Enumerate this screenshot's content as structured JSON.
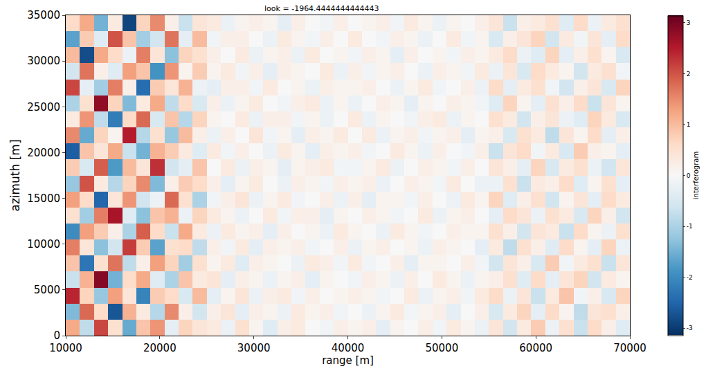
{
  "chart_data": {
    "type": "heatmap",
    "title": "look = -1964.4444444444443",
    "x_label": "range [m]",
    "y_label": "azimuth [m]",
    "xlim": [
      10000,
      70000
    ],
    "ylim": [
      0,
      35000
    ],
    "xticks": [
      10000,
      20000,
      30000,
      40000,
      50000,
      60000,
      70000
    ],
    "yticks": [
      0,
      5000,
      10000,
      15000,
      20000,
      25000,
      30000,
      35000
    ],
    "grid": false,
    "colorbar": {
      "title": "interferogram",
      "range": [
        -3.14159,
        3.14159
      ],
      "ticks": [
        -3,
        -2,
        -1,
        0,
        1,
        2,
        3
      ]
    },
    "x": [
      10750,
      12250,
      13750,
      15250,
      16750,
      18250,
      19750,
      21250,
      22750,
      24250,
      25750,
      27250,
      28750,
      30250,
      31750,
      33250,
      34750,
      36250,
      37750,
      39250,
      40750,
      42250,
      43750,
      45250,
      46750,
      48250,
      49750,
      51250,
      52750,
      54250,
      55750,
      57250,
      58750,
      60250,
      61750,
      63250,
      64750,
      66250,
      67750,
      69250
    ],
    "y": [
      875,
      2625,
      4375,
      6125,
      7875,
      9625,
      11375,
      13125,
      14875,
      16625,
      18375,
      20125,
      21875,
      23625,
      25375,
      27125,
      28875,
      30625,
      32375,
      34125
    ],
    "z": [
      [
        1.2,
        -0.8,
        2.1,
        0.5,
        -1.6,
        0.9,
        1.4,
        -0.3,
        0.7,
        0.4,
        0.3,
        -0.2,
        0.5,
        0.1,
        -0.4,
        0.2,
        0.3,
        0.0,
        -0.1,
        0.2,
        0.1,
        0.2,
        -0.3,
        0.1,
        0.0,
        0.2,
        -0.1,
        0.3,
        0.1,
        -0.2,
        0.4,
        -0.6,
        0.3,
        0.8,
        -0.2,
        0.5,
        -0.7,
        0.6,
        0.2,
        -0.4
      ],
      [
        -1.4,
        1.8,
        0.6,
        -2.7,
        1.1,
        0.3,
        -0.9,
        1.5,
        0.2,
        -0.6,
        0.2,
        0.4,
        -0.3,
        0.2,
        0.1,
        -0.2,
        0.3,
        0.1,
        0.2,
        -0.1,
        0.0,
        -0.2,
        0.1,
        0.3,
        -0.1,
        0.1,
        0.2,
        -0.3,
        0.0,
        0.2,
        -0.5,
        0.3,
        0.7,
        -0.3,
        0.6,
        0.1,
        -0.8,
        0.4,
        0.5,
        0.2
      ],
      [
        2.4,
        0.7,
        -1.2,
        1.3,
        0.4,
        -2.1,
        0.8,
        0.6,
        -0.5,
        1.0,
        -0.3,
        0.1,
        0.4,
        -0.2,
        0.2,
        0.3,
        -0.1,
        0.2,
        0.0,
        0.1,
        0.2,
        0.1,
        -0.1,
        0.0,
        0.3,
        -0.2,
        0.1,
        0.2,
        -0.1,
        0.3,
        0.6,
        -0.2,
        0.4,
        -0.7,
        0.3,
        0.9,
        -0.1,
        0.2,
        -0.5,
        0.7
      ],
      [
        -0.7,
        1.1,
        2.9,
        -1.5,
        0.6,
        1.2,
        -0.4,
        -1.0,
        0.9,
        0.3,
        0.4,
        -0.3,
        0.2,
        0.1,
        -0.2,
        0.1,
        0.2,
        -0.3,
        0.1,
        0.0,
        -0.1,
        0.2,
        0.1,
        -0.2,
        0.2,
        0.0,
        0.3,
        0.1,
        -0.2,
        0.1,
        0.2,
        0.5,
        -0.4,
        0.6,
        -0.3,
        0.4,
        0.7,
        -0.6,
        0.3,
        0.1
      ],
      [
        0.9,
        -2.3,
        0.5,
        1.7,
        -0.8,
        0.2,
        1.3,
        0.7,
        -1.1,
        0.5,
        0.1,
        0.3,
        -0.4,
        0.2,
        0.1,
        0.0,
        -0.2,
        0.3,
        0.2,
        -0.1,
        0.3,
        -0.1,
        0.0,
        0.2,
        -0.3,
        0.1,
        0.1,
        0.0,
        0.2,
        -0.1,
        -0.6,
        0.4,
        0.2,
        -0.5,
        0.8,
        -0.1,
        0.3,
        0.5,
        -0.7,
        0.4
      ],
      [
        1.6,
        0.4,
        -1.3,
        -0.6,
        2.2,
        0.8,
        -1.7,
        0.5,
        0.6,
        -0.8,
        0.2,
        -0.1,
        0.3,
        -0.3,
        0.2,
        0.1,
        0.2,
        -0.1,
        0.0,
        0.2,
        -0.2,
        0.1,
        0.2,
        0.0,
        0.1,
        -0.2,
        0.2,
        0.1,
        0.0,
        -0.3,
        0.3,
        -0.8,
        0.5,
        0.2,
        -0.4,
        0.6,
        0.1,
        -0.3,
        0.7,
        -0.2
      ],
      [
        -2.0,
        1.3,
        0.8,
        0.2,
        -1.0,
        1.9,
        0.6,
        -0.7,
        1.2,
        0.3,
        -0.2,
        0.3,
        0.1,
        0.2,
        -0.3,
        0.2,
        0.0,
        0.1,
        -0.2,
        0.3,
        0.1,
        0.0,
        -0.2,
        0.3,
        0.1,
        -0.1,
        0.0,
        0.2,
        0.1,
        0.1,
        0.5,
        0.2,
        -0.6,
        0.4,
        0.3,
        -0.7,
        0.6,
        0.1,
        -0.2,
        0.5
      ],
      [
        0.5,
        -1.1,
        1.6,
        2.6,
        -0.4,
        -1.3,
        0.9,
        1.1,
        -0.2,
        0.7,
        0.3,
        0.1,
        -0.2,
        0.0,
        0.3,
        -0.1,
        0.2,
        0.2,
        -0.3,
        0.1,
        0.0,
        0.2,
        0.1,
        -0.1,
        0.0,
        0.3,
        -0.2,
        0.1,
        0.2,
        0.0,
        -0.3,
        0.6,
        0.4,
        -0.2,
        0.5,
        0.3,
        -0.5,
        0.7,
        0.2,
        -0.6
      ],
      [
        1.3,
        0.6,
        -2.5,
        0.4,
        1.4,
        -0.6,
        -0.2,
        1.8,
        0.5,
        -1.0,
        -0.1,
        0.2,
        0.4,
        -0.2,
        0.1,
        0.3,
        -0.1,
        0.0,
        0.2,
        -0.2,
        0.2,
        -0.3,
        0.1,
        0.1,
        -0.1,
        0.2,
        0.0,
        -0.2,
        0.3,
        0.1,
        0.7,
        -0.4,
        0.2,
        0.5,
        -0.6,
        0.1,
        0.4,
        -0.3,
        0.6,
        0.3
      ],
      [
        -1.2,
        2.0,
        0.3,
        -0.9,
        0.7,
        1.5,
        -1.4,
        0.2,
        0.8,
        0.6,
        0.2,
        -0.3,
        0.1,
        0.3,
        0.0,
        -0.2,
        0.2,
        0.1,
        -0.1,
        0.2,
        0.1,
        0.2,
        -0.2,
        0.0,
        0.2,
        0.1,
        -0.1,
        0.3,
        0.0,
        -0.2,
        -0.2,
        0.5,
        -0.7,
        0.3,
        0.2,
        0.6,
        -0.4,
        0.1,
        0.5,
        -0.3
      ],
      [
        0.8,
        -0.5,
        1.9,
        -1.8,
        1.0,
        0.4,
        2.3,
        -0.6,
        -0.3,
        0.9,
        0.0,
        0.3,
        -0.2,
        0.2,
        0.1,
        -0.3,
        0.1,
        0.2,
        0.3,
        -0.1,
        -0.1,
        0.1,
        0.3,
        -0.2,
        0.0,
        0.2,
        0.1,
        -0.1,
        0.2,
        0.0,
        0.4,
        0.2,
        -0.3,
        0.7,
        -0.5,
        0.3,
        0.5,
        -0.2,
        -0.6,
        0.4
      ],
      [
        -2.6,
        0.9,
        0.4,
        1.2,
        -0.7,
        -1.5,
        1.1,
        0.8,
        0.3,
        -0.4,
        0.3,
        -0.1,
        0.2,
        0.0,
        -0.2,
        0.3,
        0.1,
        -0.3,
        0.2,
        0.1,
        0.2,
        -0.1,
        0.0,
        0.3,
        0.1,
        -0.2,
        0.2,
        0.0,
        -0.1,
        0.2,
        -0.7,
        0.4,
        0.6,
        -0.1,
        0.3,
        -0.5,
        0.8,
        0.2,
        0.1,
        -0.3
      ],
      [
        1.5,
        -1.6,
        0.7,
        0.1,
        2.5,
        -0.9,
        0.5,
        -1.2,
        1.0,
        0.2,
        -0.2,
        0.2,
        0.0,
        0.4,
        -0.1,
        0.1,
        -0.3,
        0.2,
        0.1,
        0.3,
        0.0,
        0.3,
        -0.2,
        0.1,
        0.2,
        -0.1,
        0.1,
        0.2,
        -0.3,
        0.1,
        0.2,
        -0.5,
        0.5,
        0.3,
        -0.8,
        0.4,
        0.1,
        0.6,
        -0.3,
        0.2
      ],
      [
        0.3,
        1.4,
        -0.8,
        -2.2,
        0.6,
        1.8,
        -0.5,
        0.9,
        -0.9,
        0.7,
        0.1,
        0.0,
        0.3,
        -0.2,
        0.2,
        0.2,
        -0.1,
        0.1,
        -0.2,
        0.0,
        0.3,
        -0.2,
        0.1,
        0.0,
        -0.1,
        0.2,
        0.3,
        -0.2,
        0.1,
        0.0,
        0.5,
        0.3,
        -0.6,
        0.2,
        0.4,
        -0.2,
        -0.4,
        0.7,
        0.3,
        -0.5
      ],
      [
        -1.0,
        0.5,
        2.8,
        0.7,
        -1.4,
        0.3,
        1.2,
        -0.8,
        0.6,
        -0.5,
        0.2,
        -0.2,
        0.1,
        0.3,
        0.0,
        -0.1,
        0.2,
        0.3,
        -0.2,
        0.1,
        -0.2,
        0.0,
        0.2,
        0.1,
        -0.3,
        0.1,
        0.0,
        0.2,
        0.1,
        -0.1,
        -0.4,
        0.7,
        0.1,
        -0.3,
        0.5,
        0.2,
        0.6,
        -0.7,
        0.4,
        0.1
      ],
      [
        2.1,
        -0.3,
        -1.1,
        1.6,
        0.2,
        -2.4,
        0.8,
        0.4,
        1.1,
        -0.2,
        -0.3,
        0.2,
        0.2,
        -0.1,
        0.3,
        0.0,
        0.1,
        -0.2,
        0.2,
        0.1,
        0.1,
        0.2,
        0.0,
        -0.2,
        0.1,
        0.3,
        -0.1,
        0.0,
        0.2,
        -0.2,
        0.6,
        -0.3,
        0.3,
        0.5,
        -0.1,
        -0.6,
        0.2,
        0.4,
        -0.5,
        0.7
      ],
      [
        -0.6,
        1.7,
        0.2,
        -0.4,
        1.3,
        0.9,
        -1.9,
        1.4,
        0.1,
        0.8,
        0.1,
        0.3,
        -0.1,
        0.2,
        -0.3,
        0.2,
        0.1,
        0.0,
        0.3,
        -0.2,
        0.2,
        -0.1,
        0.1,
        0.2,
        0.0,
        -0.2,
        0.2,
        0.1,
        -0.1,
        0.3,
        -0.2,
        0.4,
        -0.5,
        0.6,
        0.3,
        0.1,
        -0.6,
        0.3,
        0.5,
        -0.1
      ],
      [
        1.0,
        -2.8,
        1.2,
        0.6,
        -0.2,
        1.6,
        0.4,
        -1.3,
        0.7,
        0.5,
        0.2,
        0.0,
        0.3,
        -0.2,
        0.1,
        0.2,
        -0.2,
        0.3,
        0.0,
        0.1,
        -0.1,
        0.2,
        0.1,
        -0.3,
        0.2,
        0.0,
        0.1,
        -0.1,
        0.2,
        0.1,
        0.3,
        0.6,
        -0.2,
        -0.4,
        0.7,
        -0.3,
        0.2,
        0.5,
        0.1,
        -0.5
      ],
      [
        -1.7,
        0.8,
        -0.4,
        2.0,
        0.9,
        -1.1,
        -0.6,
        1.7,
        -0.3,
        1.0,
        -0.1,
        0.2,
        0.2,
        0.0,
        -0.2,
        0.3,
        0.1,
        -0.1,
        0.2,
        0.0,
        0.3,
        0.0,
        -0.1,
        0.2,
        0.1,
        -0.2,
        0.0,
        0.3,
        -0.1,
        0.1,
        -0.5,
        0.2,
        0.4,
        0.7,
        -0.6,
        0.3,
        -0.1,
        0.4,
        -0.3,
        0.6
      ],
      [
        0.6,
        1.2,
        -1.5,
        0.3,
        -2.9,
        0.7,
        1.5,
        0.2,
        -0.7,
        0.4,
        0.3,
        -0.2,
        0.1,
        0.2,
        0.1,
        -0.3,
        0.2,
        0.0,
        -0.1,
        0.2,
        0.0,
        0.1,
        0.2,
        -0.1,
        0.3,
        0.1,
        -0.2,
        0.1,
        0.0,
        0.2,
        0.4,
        -0.7,
        0.2,
        0.3,
        0.5,
        -0.4,
        0.6,
        -0.2,
        0.3,
        0.5
      ]
    ]
  }
}
